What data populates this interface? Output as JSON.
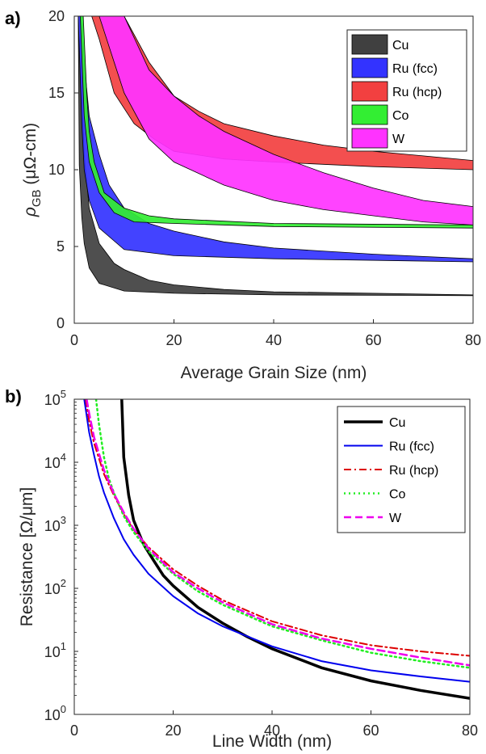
{
  "chart_data": [
    {
      "panel_label": "a)",
      "type": "area",
      "xlabel": "Average Grain Size (nm)",
      "ylabel_main": "ρ",
      "ylabel_sub": "GB",
      "ylabel_rest": " (μΩ-cm)",
      "xlim": [
        0,
        80
      ],
      "ylim": [
        0,
        20
      ],
      "xticks": [
        0,
        20,
        40,
        60,
        80
      ],
      "yticks": [
        0,
        5,
        10,
        15,
        20
      ],
      "grid": false,
      "legend_position": "top-right",
      "series": [
        {
          "name": "Cu",
          "color": "#404040",
          "band_low": [
            [
              0.8,
              20
            ],
            [
              1.0,
              10.3
            ],
            [
              1.5,
              6.9
            ],
            [
              2,
              5.2
            ],
            [
              3,
              3.6
            ],
            [
              5,
              2.6
            ],
            [
              10,
              2.1
            ],
            [
              20,
              1.95
            ],
            [
              40,
              1.85
            ],
            [
              80,
              1.8
            ]
          ],
          "band_high": [
            [
              0.8,
              20
            ],
            [
              1.5,
              15.0
            ],
            [
              2,
              11.0
            ],
            [
              3,
              7.5
            ],
            [
              5,
              5.2
            ],
            [
              8,
              3.9
            ],
            [
              10,
              3.5
            ],
            [
              15,
              2.8
            ],
            [
              20,
              2.5
            ],
            [
              30,
              2.2
            ],
            [
              40,
              2.05
            ],
            [
              60,
              1.95
            ],
            [
              80,
              1.85
            ]
          ]
        },
        {
          "name": "Ru (fcc)",
          "color": "#3333ff",
          "band_low": [
            [
              0.8,
              20
            ],
            [
              1.5,
              13.0
            ],
            [
              2,
              10.0
            ],
            [
              3,
              8.0
            ],
            [
              5,
              6.2
            ],
            [
              10,
              4.8
            ],
            [
              20,
              4.4
            ],
            [
              40,
              4.2
            ],
            [
              80,
              4.0
            ]
          ],
          "band_high": [
            [
              1.5,
              20
            ],
            [
              2,
              17.0
            ],
            [
              3,
              13.5
            ],
            [
              5,
              11.0
            ],
            [
              7,
              9.0
            ],
            [
              10,
              7.5
            ],
            [
              15,
              6.5
            ],
            [
              20,
              6.0
            ],
            [
              30,
              5.3
            ],
            [
              40,
              4.9
            ],
            [
              60,
              4.5
            ],
            [
              80,
              4.2
            ]
          ]
        },
        {
          "name": "Ru (hcp)",
          "color": "#f24040",
          "band_low": [
            [
              3.5,
              20
            ],
            [
              5,
              18.5
            ],
            [
              8,
              15.0
            ],
            [
              12,
              13.0
            ],
            [
              16,
              12.0
            ],
            [
              20,
              11.2
            ],
            [
              30,
              10.7
            ],
            [
              40,
              10.5
            ],
            [
              60,
              10.2
            ],
            [
              80,
              10.0
            ]
          ],
          "band_high": [
            [
              10,
              20
            ],
            [
              15,
              17.0
            ],
            [
              20,
              14.8
            ],
            [
              25,
              13.8
            ],
            [
              30,
              13.0
            ],
            [
              40,
              12.2
            ],
            [
              50,
              11.6
            ],
            [
              60,
              11.2
            ],
            [
              70,
              10.9
            ],
            [
              80,
              10.6
            ]
          ]
        },
        {
          "name": "Co",
          "color": "#33ee33",
          "band_low": [
            [
              1.2,
              20
            ],
            [
              2,
              13.5
            ],
            [
              3,
              10.5
            ],
            [
              5,
              8.5
            ],
            [
              8,
              7.2
            ],
            [
              12,
              6.6
            ],
            [
              20,
              6.5
            ],
            [
              40,
              6.3
            ],
            [
              80,
              6.2
            ]
          ],
          "band_high": [
            [
              1.8,
              20
            ],
            [
              2.5,
              15.0
            ],
            [
              3,
              12.5
            ],
            [
              4,
              10.5
            ],
            [
              6,
              8.5
            ],
            [
              10,
              7.5
            ],
            [
              15,
              7.0
            ],
            [
              20,
              6.8
            ],
            [
              40,
              6.5
            ],
            [
              80,
              6.4
            ]
          ]
        },
        {
          "name": "W",
          "color": "#ff33ff",
          "band_low": [
            [
              5,
              20
            ],
            [
              8,
              17.0
            ],
            [
              10,
              15.0
            ],
            [
              15,
              12.0
            ],
            [
              20,
              10.5
            ],
            [
              30,
              9.0
            ],
            [
              40,
              8.0
            ],
            [
              50,
              7.4
            ],
            [
              60,
              7.0
            ],
            [
              70,
              6.6
            ],
            [
              80,
              6.4
            ]
          ],
          "band_high": [
            [
              10,
              20
            ],
            [
              15,
              16.5
            ],
            [
              20,
              14.8
            ],
            [
              25,
              13.5
            ],
            [
              30,
              12.5
            ],
            [
              40,
              11.0
            ],
            [
              50,
              9.8
            ],
            [
              60,
              8.8
            ],
            [
              70,
              8.0
            ],
            [
              80,
              7.6
            ]
          ]
        }
      ]
    },
    {
      "panel_label": "b)",
      "type": "line",
      "xlabel": "Line Width (nm)",
      "ylabel": "Resistance [Ω/μm]",
      "xlim": [
        0,
        80
      ],
      "ylim": [
        1,
        100000
      ],
      "yscale": "log",
      "xticks": [
        0,
        20,
        40,
        60,
        80
      ],
      "yticks": [
        {
          "value": 1,
          "base": "10",
          "exp": "0"
        },
        {
          "value": 10,
          "base": "10",
          "exp": "1"
        },
        {
          "value": 100,
          "base": "10",
          "exp": "2"
        },
        {
          "value": 1000,
          "base": "10",
          "exp": "3"
        },
        {
          "value": 10000,
          "base": "10",
          "exp": "4"
        },
        {
          "value": 100000,
          "base": "10",
          "exp": "5"
        }
      ],
      "grid": false,
      "legend_position": "top-right",
      "series": [
        {
          "name": "Cu",
          "color": "#000000",
          "dash": "solid",
          "width": 3.5,
          "points": [
            [
              9.6,
              100000
            ],
            [
              10,
              12000
            ],
            [
              11,
              3000
            ],
            [
              12,
              1200
            ],
            [
              14,
              500
            ],
            [
              16,
              280
            ],
            [
              18,
              160
            ],
            [
              20,
              110
            ],
            [
              25,
              50
            ],
            [
              30,
              28
            ],
            [
              35,
              17
            ],
            [
              40,
              11
            ],
            [
              50,
              5.5
            ],
            [
              60,
              3.4
            ],
            [
              70,
              2.4
            ],
            [
              80,
              1.8
            ]
          ]
        },
        {
          "name": "Ru (fcc)",
          "color": "#0000ee",
          "dash": "solid",
          "width": 2,
          "points": [
            [
              2,
              100000
            ],
            [
              3,
              30000
            ],
            [
              4,
              13000
            ],
            [
              5,
              6000
            ],
            [
              6,
              3300
            ],
            [
              8,
              1300
            ],
            [
              10,
              600
            ],
            [
              12,
              340
            ],
            [
              15,
              170
            ],
            [
              20,
              75
            ],
            [
              25,
              40
            ],
            [
              30,
              25
            ],
            [
              40,
              12
            ],
            [
              50,
              7
            ],
            [
              60,
              5
            ],
            [
              70,
              4
            ],
            [
              80,
              3.3
            ]
          ]
        },
        {
          "name": "Ru (hcp)",
          "color": "#dd0000",
          "dash": "dashdot",
          "width": 2,
          "points": [
            [
              2.3,
              100000
            ],
            [
              3,
              45000
            ],
            [
              4,
              20000
            ],
            [
              6,
              6500
            ],
            [
              8,
              3000
            ],
            [
              10,
              1500
            ],
            [
              12,
              850
            ],
            [
              15,
              450
            ],
            [
              20,
              200
            ],
            [
              25,
              110
            ],
            [
              30,
              65
            ],
            [
              40,
              30
            ],
            [
              50,
              18
            ],
            [
              60,
              12.5
            ],
            [
              70,
              10
            ],
            [
              80,
              8.5
            ]
          ]
        },
        {
          "name": "Co",
          "color": "#22ee22",
          "dash": "dotted",
          "width": 2.5,
          "points": [
            [
              4.4,
              100000
            ],
            [
              5,
              40000
            ],
            [
              6,
              12000
            ],
            [
              7,
              5500
            ],
            [
              8,
              3300
            ],
            [
              10,
              1400
            ],
            [
              12,
              780
            ],
            [
              15,
              390
            ],
            [
              20,
              170
            ],
            [
              25,
              90
            ],
            [
              30,
              55
            ],
            [
              40,
              25
            ],
            [
              50,
              15
            ],
            [
              60,
              9.5
            ],
            [
              70,
              7
            ],
            [
              80,
              5.5
            ]
          ]
        },
        {
          "name": "W",
          "color": "#ee00ee",
          "dash": "dashed",
          "width": 2.5,
          "points": [
            [
              2.5,
              100000
            ],
            [
              3,
              60000
            ],
            [
              4,
              25000
            ],
            [
              6,
              7500
            ],
            [
              8,
              3200
            ],
            [
              10,
              1600
            ],
            [
              12,
              880
            ],
            [
              15,
              430
            ],
            [
              20,
              180
            ],
            [
              25,
              100
            ],
            [
              30,
              60
            ],
            [
              40,
              27
            ],
            [
              50,
              16
            ],
            [
              60,
              11
            ],
            [
              70,
              8
            ],
            [
              80,
              6
            ]
          ]
        }
      ]
    }
  ]
}
